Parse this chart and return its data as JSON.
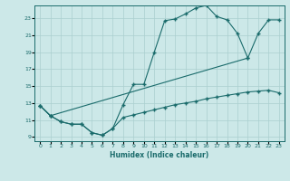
{
  "xlabel": "Humidex (Indice chaleur)",
  "bg_color": "#cce8e8",
  "grid_color": "#aacfcf",
  "line_color": "#1a6b6b",
  "xlim": [
    -0.5,
    23.5
  ],
  "ylim": [
    8.5,
    24.5
  ],
  "xticks": [
    0,
    1,
    2,
    3,
    4,
    5,
    6,
    7,
    8,
    9,
    10,
    11,
    12,
    13,
    14,
    15,
    16,
    17,
    18,
    19,
    20,
    21,
    22,
    23
  ],
  "yticks": [
    9,
    11,
    13,
    15,
    17,
    19,
    21,
    23
  ],
  "line1_x": [
    0,
    1,
    2,
    3,
    4,
    5,
    6,
    7,
    8,
    9,
    10,
    11,
    12,
    13,
    14,
    15,
    16,
    17,
    18,
    19,
    20
  ],
  "line1_y": [
    12.7,
    11.5,
    10.8,
    10.5,
    10.5,
    9.5,
    9.2,
    10.0,
    12.8,
    15.2,
    15.2,
    19.0,
    22.7,
    22.9,
    23.5,
    24.2,
    24.5,
    23.2,
    22.8,
    21.2,
    18.3
  ],
  "line2_x": [
    0,
    1,
    20,
    21,
    22,
    23
  ],
  "line2_y": [
    12.7,
    11.5,
    18.3,
    21.2,
    22.8,
    22.8
  ],
  "line3_x": [
    0,
    1,
    2,
    3,
    4,
    5,
    6,
    7,
    8,
    9,
    10,
    11,
    12,
    13,
    14,
    15,
    16,
    17,
    18,
    19,
    20,
    21,
    22,
    23
  ],
  "line3_y": [
    12.7,
    11.5,
    10.8,
    10.5,
    10.5,
    9.5,
    9.2,
    10.0,
    11.3,
    11.6,
    11.9,
    12.2,
    12.5,
    12.8,
    13.0,
    13.2,
    13.5,
    13.7,
    13.9,
    14.1,
    14.3,
    14.4,
    14.5,
    14.2
  ]
}
